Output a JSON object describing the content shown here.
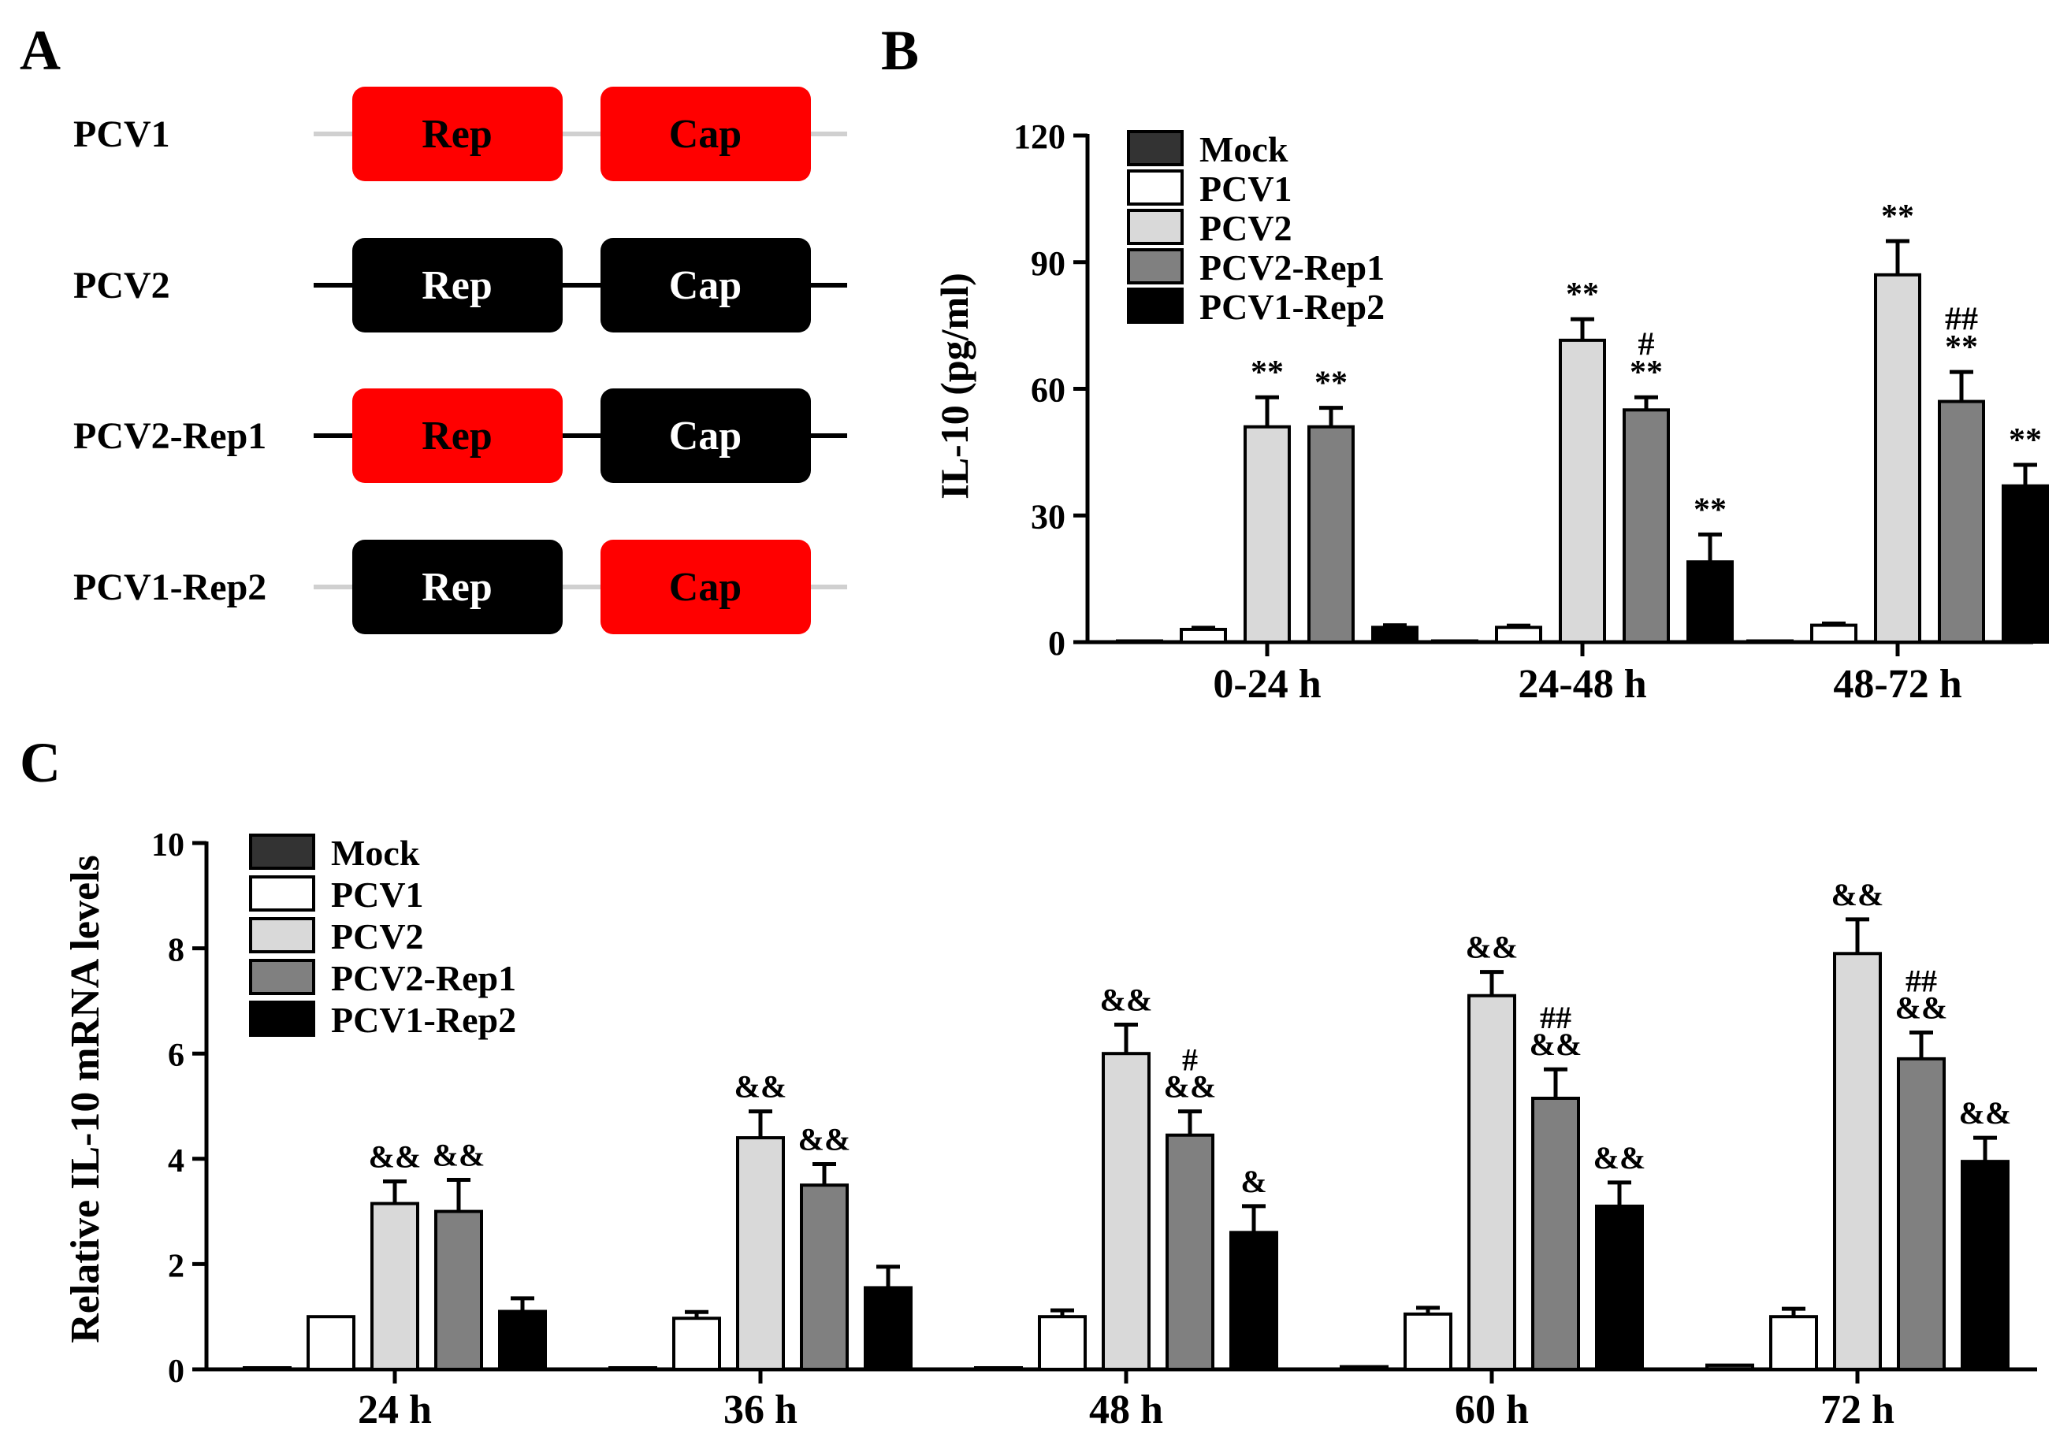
{
  "panels": {
    "a": "A",
    "b": "B",
    "c": "C"
  },
  "colors": {
    "red": "#ff0000",
    "black": "#000000",
    "mock": "#333333",
    "pcv1": "#ffffff",
    "pcv2": "#d9d9d9",
    "pcv2rep1": "#808080",
    "pcv1rep2": "#000000",
    "line_light": "#d0d0d0"
  },
  "diagram": {
    "rows": [
      {
        "name": "PCV1",
        "rep": "Rep",
        "cap": "Cap",
        "rep_color": "red",
        "cap_color": "red",
        "line": "light"
      },
      {
        "name": "PCV2",
        "rep": "Rep",
        "cap": "Cap",
        "rep_color": "black",
        "cap_color": "black",
        "line": "dark"
      },
      {
        "name": "PCV2-Rep1",
        "rep": "Rep",
        "cap": "Cap",
        "rep_color": "red",
        "cap_color": "black",
        "line": "dark"
      },
      {
        "name": "PCV1-Rep2",
        "rep": "Rep",
        "cap": "Cap",
        "rep_color": "black",
        "cap_color": "red",
        "line": "light"
      }
    ]
  },
  "chart_data": [
    {
      "panel": "B",
      "type": "bar",
      "ylabel": "IL-10 (pg/ml)",
      "ylim": [
        0,
        120
      ],
      "yticks": [
        0,
        30,
        60,
        90,
        120
      ],
      "legend": [
        "Mock",
        "PCV1",
        "PCV2",
        "PCV2-Rep1",
        "PCV1-Rep2"
      ],
      "legend_position": "top-left",
      "categories": [
        "0-24 h",
        "24-48 h",
        "48-72 h"
      ],
      "series": [
        {
          "name": "Mock",
          "values": [
            0.2,
            0.2,
            0.2
          ],
          "errors": [
            0,
            0,
            0
          ]
        },
        {
          "name": "PCV1",
          "values": [
            3,
            3.5,
            4
          ],
          "errors": [
            0.4,
            0.4,
            0.4
          ]
        },
        {
          "name": "PCV2",
          "values": [
            51,
            71.5,
            87
          ],
          "errors": [
            7,
            5,
            8
          ]
        },
        {
          "name": "PCV2-Rep1",
          "values": [
            51,
            55,
            57
          ],
          "errors": [
            4.5,
            3,
            7
          ]
        },
        {
          "name": "PCV1-Rep2",
          "values": [
            3.5,
            19,
            37
          ],
          "errors": [
            0.5,
            6.5,
            5
          ]
        }
      ],
      "annotations": [
        [
          [
            "",
            ""
          ],
          [
            "",
            ""
          ],
          [
            "**",
            ""
          ],
          [
            "**",
            ""
          ],
          [
            "",
            ""
          ]
        ],
        [
          [
            "",
            ""
          ],
          [
            "",
            ""
          ],
          [
            "**",
            ""
          ],
          [
            "**",
            "#"
          ],
          [
            "**",
            ""
          ]
        ],
        [
          [
            "",
            ""
          ],
          [
            "",
            ""
          ],
          [
            "**",
            ""
          ],
          [
            "**",
            "##"
          ],
          [
            "**",
            ""
          ]
        ]
      ]
    },
    {
      "panel": "C",
      "type": "bar",
      "ylabel": "Relative IL-10 mRNA levels",
      "ylim": [
        0,
        10
      ],
      "yticks": [
        0,
        2,
        4,
        6,
        8,
        10
      ],
      "legend": [
        "Mock",
        "PCV1",
        "PCV2",
        "PCV2-Rep1",
        "PCV1-Rep2"
      ],
      "legend_position": "top-left",
      "categories": [
        "24 h",
        "36 h",
        "48 h",
        "60 h",
        "72 h"
      ],
      "series": [
        {
          "name": "Mock",
          "values": [
            0.03,
            0.03,
            0.03,
            0.05,
            0.08
          ],
          "errors": [
            0,
            0,
            0,
            0,
            0
          ]
        },
        {
          "name": "PCV1",
          "values": [
            1.0,
            0.97,
            1.0,
            1.05,
            1.0
          ],
          "errors": [
            0,
            0.12,
            0.12,
            0.12,
            0.15
          ]
        },
        {
          "name": "PCV2",
          "values": [
            3.15,
            4.4,
            6.0,
            7.1,
            7.9
          ],
          "errors": [
            0.42,
            0.5,
            0.55,
            0.45,
            0.65
          ]
        },
        {
          "name": "PCV2-Rep1",
          "values": [
            3.0,
            3.5,
            4.45,
            5.15,
            5.9
          ],
          "errors": [
            0.6,
            0.4,
            0.45,
            0.55,
            0.5
          ]
        },
        {
          "name": "PCV1-Rep2",
          "values": [
            1.1,
            1.55,
            2.6,
            3.1,
            3.95
          ],
          "errors": [
            0.25,
            0.4,
            0.5,
            0.45,
            0.45
          ]
        }
      ],
      "annotations": [
        [
          [
            "",
            ""
          ],
          [
            "",
            ""
          ],
          [
            "&&",
            ""
          ],
          [
            "&&",
            ""
          ],
          [
            "",
            ""
          ]
        ],
        [
          [
            "",
            ""
          ],
          [
            "",
            ""
          ],
          [
            "&&",
            ""
          ],
          [
            "&&",
            ""
          ],
          [
            "",
            ""
          ]
        ],
        [
          [
            "",
            ""
          ],
          [
            "",
            ""
          ],
          [
            "&&",
            ""
          ],
          [
            "&&",
            "#"
          ],
          [
            "&",
            ""
          ]
        ],
        [
          [
            "",
            ""
          ],
          [
            "",
            ""
          ],
          [
            "&&",
            ""
          ],
          [
            "&&",
            "##"
          ],
          [
            "&&",
            ""
          ]
        ],
        [
          [
            "",
            ""
          ],
          [
            "",
            ""
          ],
          [
            "&&",
            ""
          ],
          [
            "&&",
            "##"
          ],
          [
            "&&",
            ""
          ]
        ]
      ]
    }
  ]
}
